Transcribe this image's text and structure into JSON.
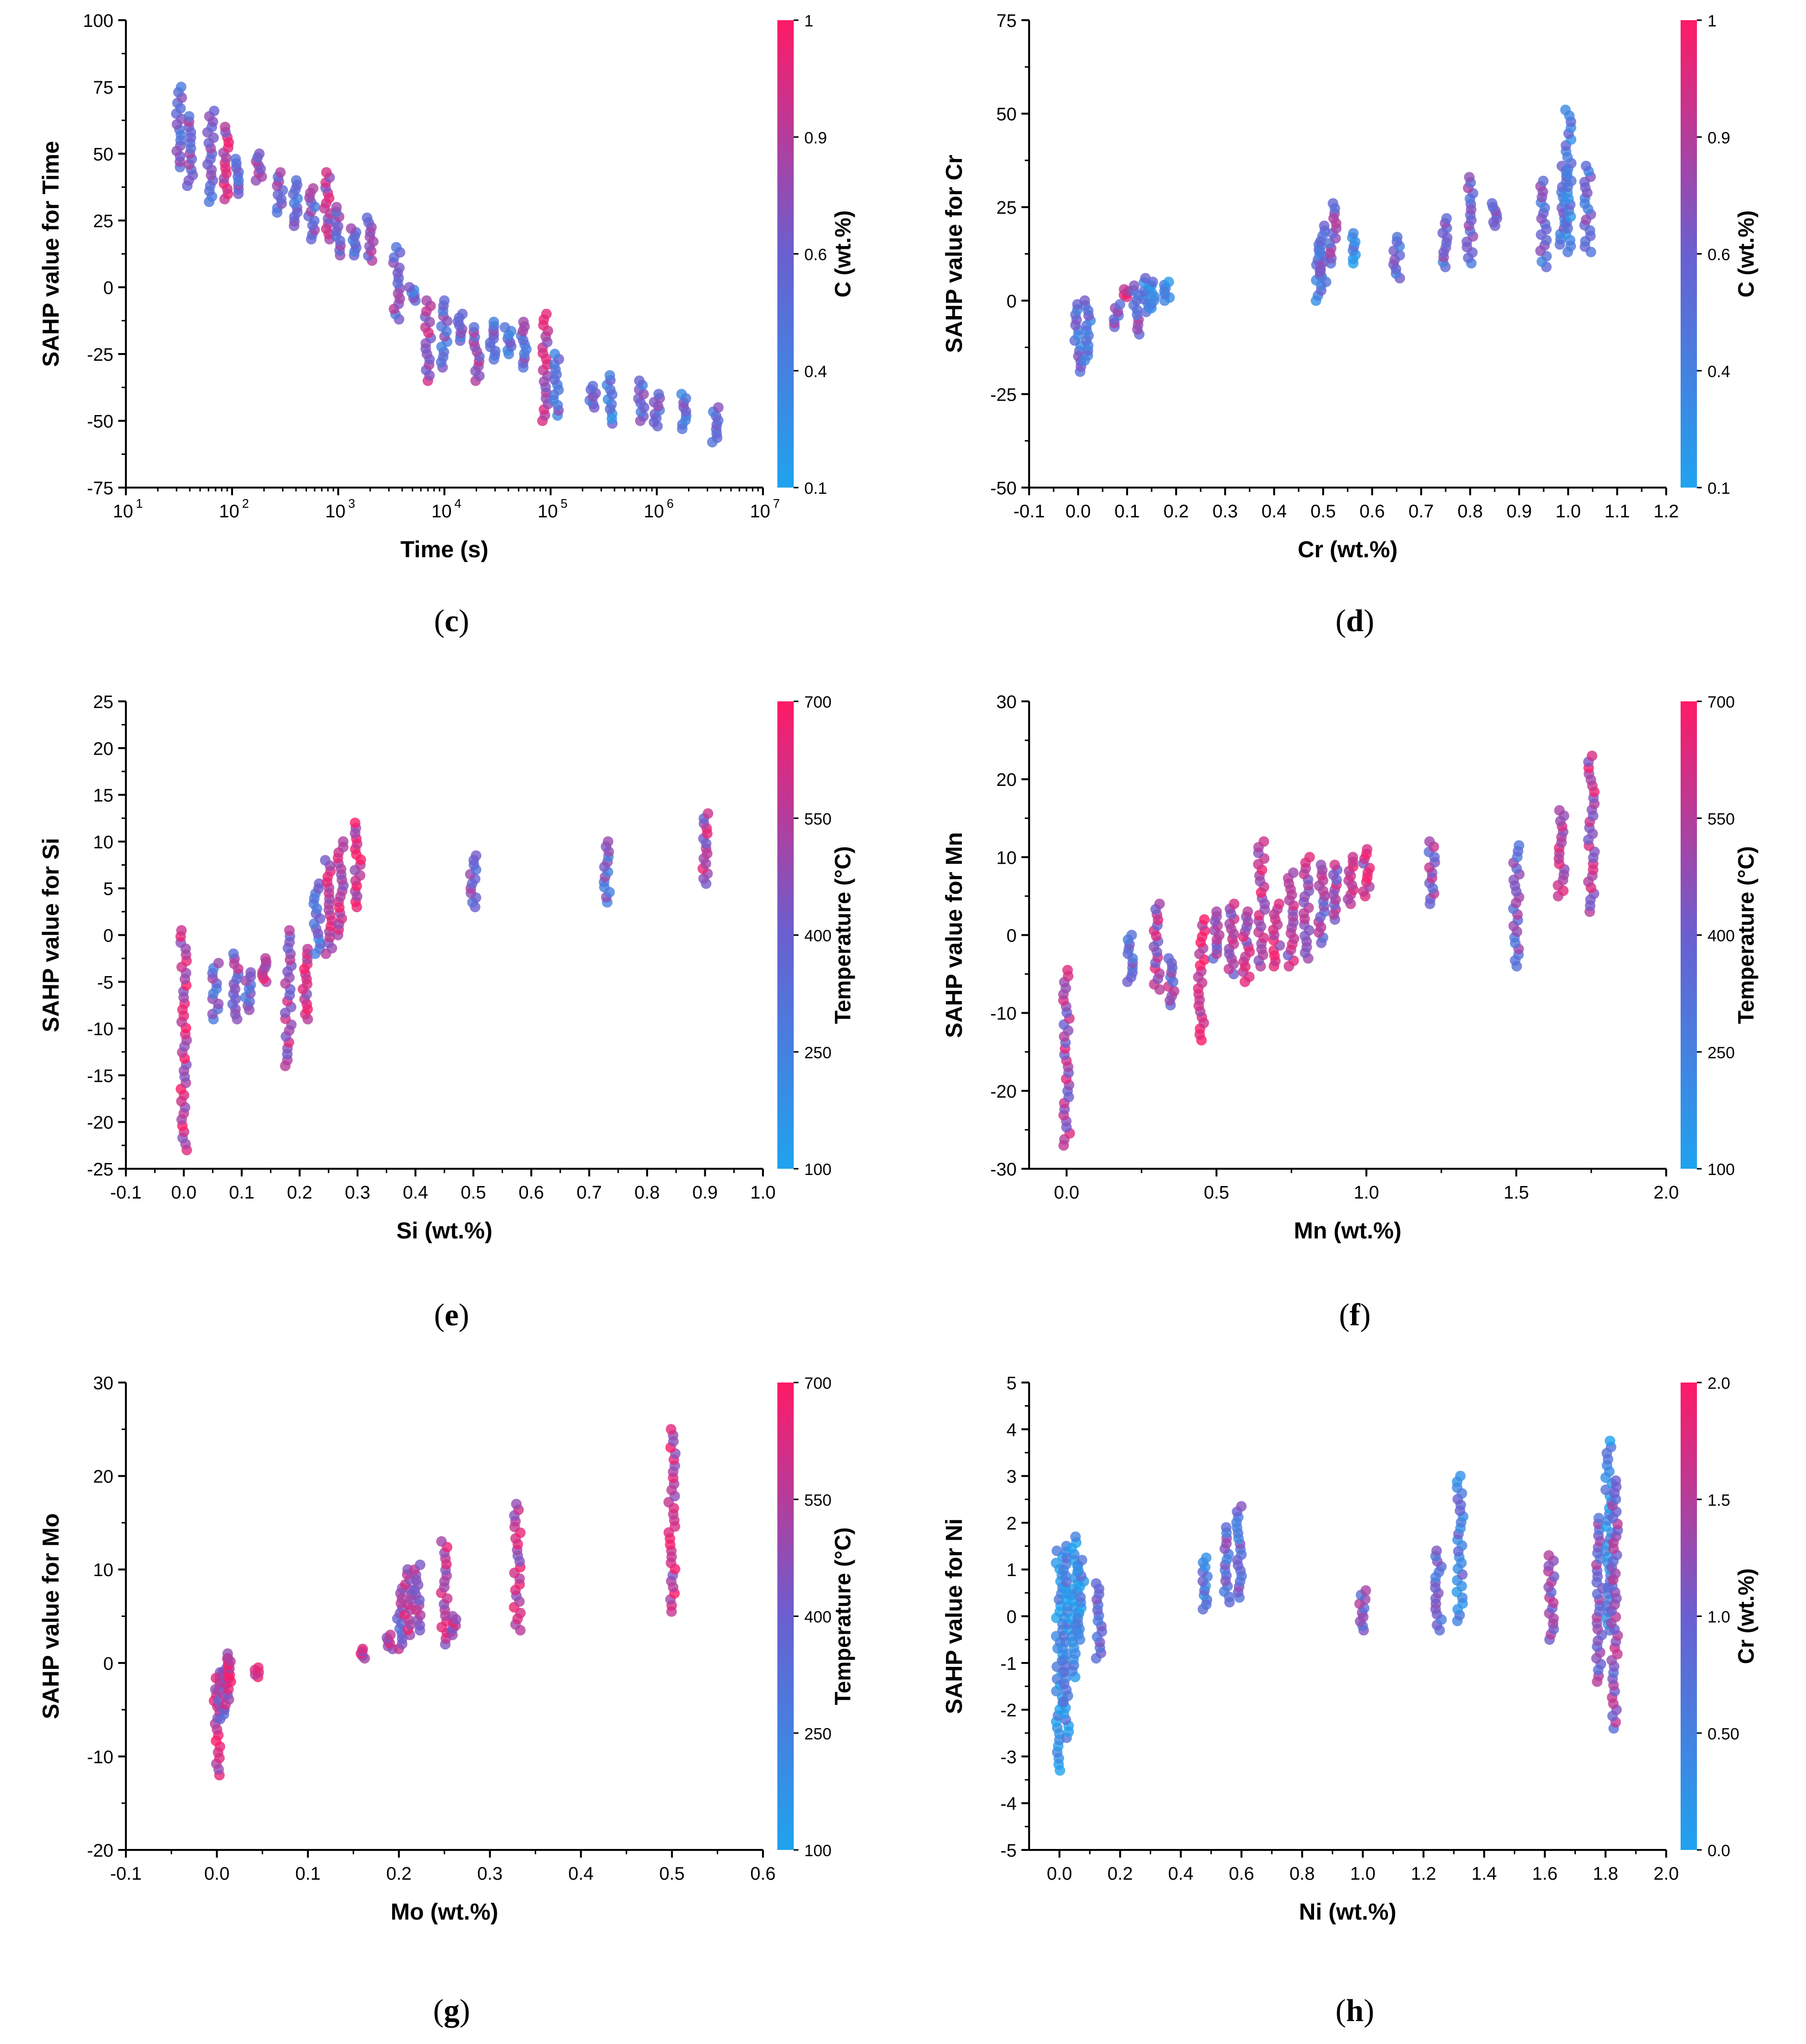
{
  "colors": {
    "low": "#1fa3ef",
    "mid": "#6a5fd0",
    "high": "#ff1a66"
  },
  "chart_data": [
    {
      "id": "c",
      "type": "scatter",
      "caption": "c",
      "xscale": "log",
      "xlabel": "Time (s)",
      "ylabel": "SAHP value for Time",
      "xlim": [
        1,
        7
      ],
      "ylim": [
        -75,
        100
      ],
      "xticks": [
        1,
        2,
        3,
        4,
        5,
        6,
        7
      ],
      "xtick_labels": [
        "10",
        "10",
        "10",
        "10",
        "10",
        "10",
        "10"
      ],
      "xtick_exps": [
        "1",
        "2",
        "3",
        "4",
        "5",
        "6",
        "7"
      ],
      "yticks": [
        -75,
        -50,
        -25,
        0,
        25,
        50,
        75,
        100
      ],
      "ytick_labels": [
        "-75",
        "-50",
        "-25",
        "0",
        "25",
        "50",
        "75",
        "100"
      ],
      "colorbar": {
        "label": "C (wt.%)",
        "ticks": [
          "0.1",
          "0.4",
          "0.6",
          "0.9",
          "1"
        ],
        "tick_pos": [
          0,
          0.25,
          0.5,
          0.75,
          1
        ]
      },
      "columns": [
        {
          "x": 1.5,
          "ymin": 45,
          "ymax": 75,
          "c": 0.45
        },
        {
          "x": 1.6,
          "ymin": 38,
          "ymax": 64,
          "c": 0.55
        },
        {
          "x": 1.8,
          "ymin": 32,
          "ymax": 66,
          "c": 0.5
        },
        {
          "x": 1.95,
          "ymin": 33,
          "ymax": 60,
          "c": 0.75
        },
        {
          "x": 2.05,
          "ymin": 35,
          "ymax": 48,
          "c": 0.45
        },
        {
          "x": 2.25,
          "ymin": 40,
          "ymax": 50,
          "c": 0.6
        },
        {
          "x": 2.45,
          "ymin": 28,
          "ymax": 43,
          "c": 0.5
        },
        {
          "x": 2.6,
          "ymin": 23,
          "ymax": 40,
          "c": 0.45
        },
        {
          "x": 2.75,
          "ymin": 18,
          "ymax": 37,
          "c": 0.5
        },
        {
          "x": 2.9,
          "ymin": 18,
          "ymax": 43,
          "c": 0.7
        },
        {
          "x": 3.0,
          "ymin": 12,
          "ymax": 30,
          "c": 0.55
        },
        {
          "x": 3.15,
          "ymin": 12,
          "ymax": 22,
          "c": 0.45
        },
        {
          "x": 3.3,
          "ymin": 10,
          "ymax": 26,
          "c": 0.6
        },
        {
          "x": 3.55,
          "ymin": -12,
          "ymax": 15,
          "c": 0.55
        },
        {
          "x": 3.7,
          "ymin": -5,
          "ymax": 0,
          "c": 0.4
        },
        {
          "x": 3.85,
          "ymin": -35,
          "ymax": -5,
          "c": 0.7
        },
        {
          "x": 4.0,
          "ymin": -30,
          "ymax": -5,
          "c": 0.45
        },
        {
          "x": 4.15,
          "ymin": -20,
          "ymax": -10,
          "c": 0.45
        },
        {
          "x": 4.3,
          "ymin": -35,
          "ymax": -15,
          "c": 0.6
        },
        {
          "x": 4.45,
          "ymin": -27,
          "ymax": -13,
          "c": 0.45
        },
        {
          "x": 4.6,
          "ymin": -25,
          "ymax": -15,
          "c": 0.4
        },
        {
          "x": 4.75,
          "ymin": -30,
          "ymax": -13,
          "c": 0.5
        },
        {
          "x": 4.95,
          "ymin": -50,
          "ymax": -10,
          "c": 0.75
        },
        {
          "x": 5.05,
          "ymin": -48,
          "ymax": -25,
          "c": 0.4
        },
        {
          "x": 5.4,
          "ymin": -45,
          "ymax": -37,
          "c": 0.4
        },
        {
          "x": 5.55,
          "ymin": -51,
          "ymax": -33,
          "c": 0.3
        },
        {
          "x": 5.85,
          "ymin": -50,
          "ymax": -35,
          "c": 0.45
        },
        {
          "x": 6.0,
          "ymin": -52,
          "ymax": -40,
          "c": 0.5
        },
        {
          "x": 6.25,
          "ymin": -53,
          "ymax": -40,
          "c": 0.4
        },
        {
          "x": 6.55,
          "ymin": -58,
          "ymax": -45,
          "c": 0.5
        }
      ]
    },
    {
      "id": "d",
      "type": "scatter",
      "caption": "d",
      "xscale": "linear",
      "xlabel": "Cr (wt.%)",
      "ylabel": "SAHP value for Cr",
      "xlim": [
        -0.1,
        1.2
      ],
      "ylim": [
        -50,
        75
      ],
      "xticks": [
        -0.1,
        0,
        0.1,
        0.2,
        0.3,
        0.4,
        0.5,
        0.6,
        0.7,
        0.8,
        0.9,
        1.0,
        1.1,
        1.2
      ],
      "xtick_labels": [
        "-0.1",
        "0.0",
        "0.1",
        "0.2",
        "0.3",
        "0.4",
        "0.5",
        "0.6",
        "0.7",
        "0.8",
        "0.9",
        "1.0",
        "1.1",
        "1.2"
      ],
      "yticks": [
        -50,
        -25,
        0,
        25,
        50,
        75
      ],
      "ytick_labels": [
        "-50",
        "-25",
        "0",
        "25",
        "50",
        "75"
      ],
      "colorbar": {
        "label": "C (wt.%)",
        "ticks": [
          "0.1",
          "0.4",
          "0.6",
          "0.9",
          "1"
        ],
        "tick_pos": [
          0,
          0.25,
          0.5,
          0.75,
          1
        ]
      },
      "columns": [
        {
          "x": 0.0,
          "ymin": -19,
          "ymax": -1,
          "c": 0.4
        },
        {
          "x": 0.02,
          "ymin": -16,
          "ymax": 0,
          "c": 0.35
        },
        {
          "x": 0.08,
          "ymin": -7,
          "ymax": -1,
          "c": 0.55
        },
        {
          "x": 0.1,
          "ymin": 1,
          "ymax": 3,
          "c": 0.85
        },
        {
          "x": 0.12,
          "ymin": -9,
          "ymax": 4,
          "c": 0.55
        },
        {
          "x": 0.14,
          "ymin": -3,
          "ymax": 6,
          "c": 0.3
        },
        {
          "x": 0.15,
          "ymin": -2,
          "ymax": 5,
          "c": 0.25
        },
        {
          "x": 0.18,
          "ymin": 0,
          "ymax": 5,
          "c": 0.2
        },
        {
          "x": 0.49,
          "ymin": 0,
          "ymax": 15,
          "c": 0.35
        },
        {
          "x": 0.5,
          "ymin": 5,
          "ymax": 20,
          "c": 0.45
        },
        {
          "x": 0.52,
          "ymin": 10,
          "ymax": 26,
          "c": 0.55
        },
        {
          "x": 0.56,
          "ymin": 10,
          "ymax": 18,
          "c": 0.2
        },
        {
          "x": 0.65,
          "ymin": 6,
          "ymax": 17,
          "c": 0.4
        },
        {
          "x": 0.75,
          "ymin": 9,
          "ymax": 22,
          "c": 0.45
        },
        {
          "x": 0.8,
          "ymin": 10,
          "ymax": 33,
          "c": 0.5
        },
        {
          "x": 0.85,
          "ymin": 20,
          "ymax": 26,
          "c": 0.5
        },
        {
          "x": 0.95,
          "ymin": 9,
          "ymax": 32,
          "c": 0.45
        },
        {
          "x": 0.99,
          "ymin": 15,
          "ymax": 36,
          "c": 0.4
        },
        {
          "x": 1.0,
          "ymin": 13,
          "ymax": 51,
          "c": 0.3
        },
        {
          "x": 1.04,
          "ymin": 13,
          "ymax": 36,
          "c": 0.45
        }
      ]
    },
    {
      "id": "e",
      "type": "scatter",
      "caption": "e",
      "xscale": "linear",
      "xlabel": "Si (wt.%)",
      "ylabel": "SAHP value for Si",
      "xlim": [
        -0.1,
        1.0
      ],
      "ylim": [
        -25,
        25
      ],
      "xticks": [
        -0.1,
        0,
        0.1,
        0.2,
        0.3,
        0.4,
        0.5,
        0.6,
        0.7,
        0.8,
        0.9,
        1.0
      ],
      "xtick_labels": [
        "-0.1",
        "0.0",
        "0.1",
        "0.2",
        "0.3",
        "0.4",
        "0.5",
        "0.6",
        "0.7",
        "0.8",
        "0.9",
        "1.0"
      ],
      "yticks": [
        -25,
        -20,
        -15,
        -10,
        -5,
        0,
        5,
        10,
        15,
        20,
        25
      ],
      "ytick_labels": [
        "-25",
        "-20",
        "-15",
        "-10",
        "-5",
        "0",
        "5",
        "10",
        "15",
        "20",
        "25"
      ],
      "colorbar": {
        "label": "Temperature (°C)",
        "ticks": [
          "100",
          "250",
          "400",
          "550",
          "700"
        ],
        "tick_pos": [
          0,
          0.25,
          0.5,
          0.75,
          1
        ]
      },
      "columns": [
        {
          "x": 0.0,
          "ymin": -23,
          "ymax": 0.5,
          "c": 0.8
        },
        {
          "x": 0.055,
          "ymin": -9,
          "ymax": -3,
          "c": 0.5
        },
        {
          "x": 0.09,
          "ymin": -9,
          "ymax": -2,
          "c": 0.6
        },
        {
          "x": 0.11,
          "ymin": -8,
          "ymax": -4,
          "c": 0.45
        },
        {
          "x": 0.14,
          "ymin": -5,
          "ymax": -2.5,
          "c": 0.8
        },
        {
          "x": 0.18,
          "ymin": -14,
          "ymax": 0.5,
          "c": 0.7
        },
        {
          "x": 0.21,
          "ymin": -9,
          "ymax": -1.5,
          "c": 0.8
        },
        {
          "x": 0.23,
          "ymin": -2,
          "ymax": 5.5,
          "c": 0.4
        },
        {
          "x": 0.25,
          "ymin": -2,
          "ymax": 8,
          "c": 0.75
        },
        {
          "x": 0.27,
          "ymin": 0,
          "ymax": 10,
          "c": 0.8
        },
        {
          "x": 0.3,
          "ymin": 3,
          "ymax": 12,
          "c": 0.85
        },
        {
          "x": 0.5,
          "ymin": 3,
          "ymax": 8.5,
          "c": 0.55
        },
        {
          "x": 0.73,
          "ymin": 3.5,
          "ymax": 10,
          "c": 0.45
        },
        {
          "x": 0.9,
          "ymin": 5.5,
          "ymax": 13,
          "c": 0.7
        }
      ]
    },
    {
      "id": "f",
      "type": "scatter",
      "caption": "f",
      "xscale": "linear",
      "xlabel": "Mn (wt.%)",
      "ylabel": "SAHP value for Mn",
      "xlim": [
        -0.125,
        2.0
      ],
      "ylim": [
        -30,
        30
      ],
      "xticks": [
        0,
        0.5,
        1.0,
        1.5,
        2.0
      ],
      "xtick_labels": [
        "0.0",
        "0.5",
        "1.0",
        "1.5",
        "2.0"
      ],
      "yticks": [
        -30,
        -20,
        -10,
        0,
        10,
        20,
        30
      ],
      "ytick_labels": [
        "-30",
        "-20",
        "-10",
        "0",
        "10",
        "20",
        "30"
      ],
      "colorbar": {
        "label": "Temperature (°C)",
        "ticks": [
          "100",
          "250",
          "400",
          "550",
          "700"
        ],
        "tick_pos": [
          0,
          0.25,
          0.5,
          0.75,
          1
        ]
      },
      "columns": [
        {
          "x": 0.0,
          "ymin": -27,
          "ymax": -4.5,
          "c": 0.7
        },
        {
          "x": 0.21,
          "ymin": -6,
          "ymax": 0,
          "c": 0.45
        },
        {
          "x": 0.3,
          "ymin": -7,
          "ymax": 4,
          "c": 0.7
        },
        {
          "x": 0.35,
          "ymin": -9,
          "ymax": -3,
          "c": 0.6
        },
        {
          "x": 0.45,
          "ymin": -13.5,
          "ymax": 2,
          "c": 0.85
        },
        {
          "x": 0.5,
          "ymin": -3,
          "ymax": 3,
          "c": 0.6
        },
        {
          "x": 0.55,
          "ymin": -5,
          "ymax": 4,
          "c": 0.7
        },
        {
          "x": 0.6,
          "ymin": -6,
          "ymax": 3,
          "c": 0.75
        },
        {
          "x": 0.65,
          "ymin": -4,
          "ymax": 12,
          "c": 0.75
        },
        {
          "x": 0.7,
          "ymin": -4,
          "ymax": 4,
          "c": 0.8
        },
        {
          "x": 0.75,
          "ymin": -4,
          "ymax": 8,
          "c": 0.7
        },
        {
          "x": 0.8,
          "ymin": -3,
          "ymax": 10,
          "c": 0.75
        },
        {
          "x": 0.85,
          "ymin": -1,
          "ymax": 9,
          "c": 0.6
        },
        {
          "x": 0.9,
          "ymin": 2,
          "ymax": 9,
          "c": 0.65
        },
        {
          "x": 0.95,
          "ymin": 4,
          "ymax": 10,
          "c": 0.7
        },
        {
          "x": 1.0,
          "ymin": 5,
          "ymax": 11,
          "c": 0.8
        },
        {
          "x": 1.22,
          "ymin": 4,
          "ymax": 12,
          "c": 0.6
        },
        {
          "x": 1.5,
          "ymin": -4,
          "ymax": 11.5,
          "c": 0.5
        },
        {
          "x": 1.65,
          "ymin": 5,
          "ymax": 16,
          "c": 0.7
        },
        {
          "x": 1.75,
          "ymin": 3,
          "ymax": 23,
          "c": 0.75
        }
      ]
    },
    {
      "id": "g",
      "type": "scatter",
      "caption": "g",
      "xscale": "linear",
      "xlabel": "Mo (wt.%)",
      "ylabel": "SAHP value for Mo",
      "xlim": [
        -0.1,
        0.6
      ],
      "ylim": [
        -20,
        30
      ],
      "xticks": [
        -0.1,
        0,
        0.1,
        0.2,
        0.3,
        0.4,
        0.5,
        0.6
      ],
      "xtick_labels": [
        "-0.1",
        "0.0",
        "0.1",
        "0.2",
        "0.3",
        "0.4",
        "0.5",
        "0.6"
      ],
      "yticks": [
        -20,
        -10,
        0,
        10,
        20,
        30
      ],
      "ytick_labels": [
        "-20",
        "-10",
        "0",
        "10",
        "20",
        "30"
      ],
      "colorbar": {
        "label": "Temperature (°C)",
        "ticks": [
          "100",
          "250",
          "400",
          "550",
          "700"
        ],
        "tick_pos": [
          0,
          0.25,
          0.5,
          0.75,
          1
        ]
      },
      "columns": [
        {
          "x": 0.0,
          "ymin": -12,
          "ymax": -1,
          "c": 0.8
        },
        {
          "x": 0.005,
          "ymin": -6,
          "ymax": -1,
          "c": 0.6
        },
        {
          "x": 0.01,
          "ymin": -5,
          "ymax": 1,
          "c": 0.7
        },
        {
          "x": 0.015,
          "ymin": -2,
          "ymax": 0.5,
          "c": 0.8
        },
        {
          "x": 0.045,
          "ymin": -1.5,
          "ymax": -0.5,
          "c": 0.75
        },
        {
          "x": 0.16,
          "ymin": 0.5,
          "ymax": 1.5,
          "c": 0.75
        },
        {
          "x": 0.19,
          "ymin": 1.5,
          "ymax": 3,
          "c": 0.65
        },
        {
          "x": 0.2,
          "ymin": 1.5,
          "ymax": 8,
          "c": 0.6
        },
        {
          "x": 0.21,
          "ymin": 3,
          "ymax": 10,
          "c": 0.75
        },
        {
          "x": 0.22,
          "ymin": 3.5,
          "ymax": 10.5,
          "c": 0.7
        },
        {
          "x": 0.25,
          "ymin": 2,
          "ymax": 13,
          "c": 0.75
        },
        {
          "x": 0.26,
          "ymin": 3,
          "ymax": 5,
          "c": 0.7
        },
        {
          "x": 0.33,
          "ymin": 3.5,
          "ymax": 17,
          "c": 0.75
        },
        {
          "x": 0.5,
          "ymin": 5.5,
          "ymax": 25,
          "c": 0.8
        }
      ]
    },
    {
      "id": "h",
      "type": "scatter",
      "caption": "h",
      "xscale": "linear",
      "xlabel": "Ni (wt.%)",
      "ylabel": "SAHP value for Ni",
      "xlim": [
        -0.1,
        2.0
      ],
      "ylim": [
        -5,
        5
      ],
      "xticks": [
        0,
        0.2,
        0.4,
        0.6,
        0.8,
        1.0,
        1.2,
        1.4,
        1.6,
        1.8,
        2.0
      ],
      "xtick_labels": [
        "0.0",
        "0.2",
        "0.4",
        "0.6",
        "0.8",
        "1.0",
        "1.2",
        "1.4",
        "1.6",
        "1.8",
        "2.0"
      ],
      "yticks": [
        -5,
        -4,
        -3,
        -2,
        -1,
        0,
        1,
        2,
        3,
        4,
        5
      ],
      "ytick_labels": [
        "-5",
        "-4",
        "-3",
        "-2",
        "-1",
        "0",
        "1",
        "2",
        "3",
        "4",
        "5"
      ],
      "colorbar": {
        "label": "Cr (wt.%)",
        "ticks": [
          "0.0",
          "0.50",
          "1.0",
          "1.5",
          "2.0"
        ],
        "tick_pos": [
          0,
          0.25,
          0.5,
          0.75,
          1
        ]
      },
      "columns": [
        {
          "x": 0.0,
          "ymin": -3.3,
          "ymax": 1.4,
          "c": 0.12
        },
        {
          "x": 0.02,
          "ymin": -2.6,
          "ymax": 1.5,
          "c": 0.2
        },
        {
          "x": 0.05,
          "ymin": -1.3,
          "ymax": 1.7,
          "c": 0.15
        },
        {
          "x": 0.07,
          "ymin": -0.5,
          "ymax": 1.2,
          "c": 0.2
        },
        {
          "x": 0.13,
          "ymin": -0.9,
          "ymax": 0.7,
          "c": 0.35
        },
        {
          "x": 0.48,
          "ymin": 0.15,
          "ymax": 1.25,
          "c": 0.35
        },
        {
          "x": 0.55,
          "ymin": 0.3,
          "ymax": 1.9,
          "c": 0.45
        },
        {
          "x": 0.59,
          "ymin": 0.4,
          "ymax": 2.35,
          "c": 0.4
        },
        {
          "x": 1.0,
          "ymin": -0.3,
          "ymax": 0.55,
          "c": 0.55
        },
        {
          "x": 1.25,
          "ymin": -0.3,
          "ymax": 1.4,
          "c": 0.4
        },
        {
          "x": 1.32,
          "ymin": -0.1,
          "ymax": 3.0,
          "c": 0.3
        },
        {
          "x": 1.62,
          "ymin": -0.5,
          "ymax": 1.3,
          "c": 0.6
        },
        {
          "x": 1.78,
          "ymin": -1.4,
          "ymax": 2.1,
          "c": 0.55
        },
        {
          "x": 1.81,
          "ymin": -0.3,
          "ymax": 3.75,
          "c": 0.2
        },
        {
          "x": 1.83,
          "ymin": -2.4,
          "ymax": 2.9,
          "c": 0.6
        }
      ]
    }
  ]
}
